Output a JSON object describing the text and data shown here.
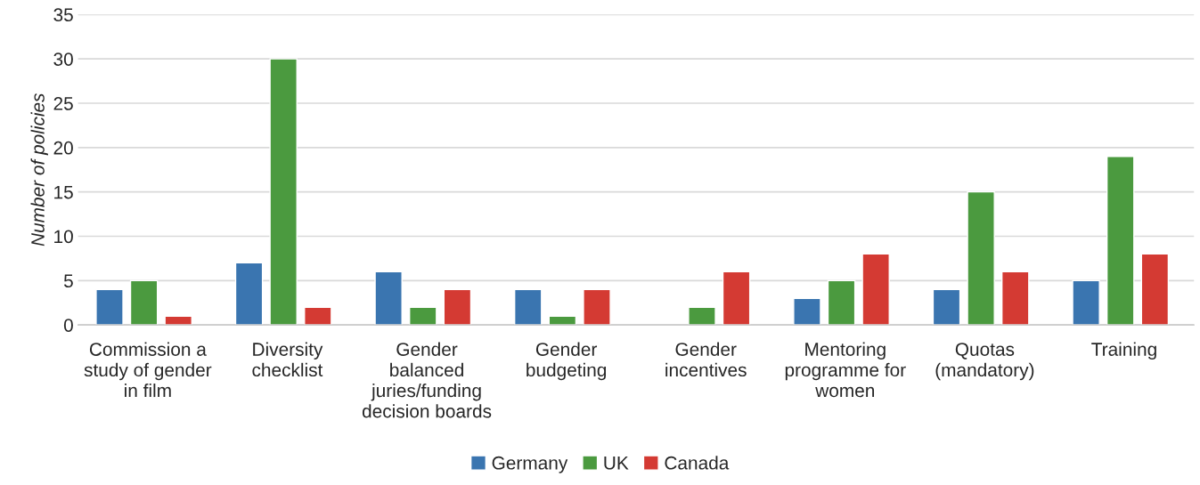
{
  "chart_data": {
    "type": "bar",
    "ylabel": "Number of policies",
    "categories": [
      "Commission a\nstudy of gender\nin film",
      "Diversity\nchecklist",
      "Gender\nbalanced\njuries/funding\ndecision boards",
      "Gender\nbudgeting",
      "Gender\nincentives",
      "Mentoring\nprogramme for\nwomen",
      "Quotas\n(mandatory)",
      "Training"
    ],
    "series": [
      {
        "name": "Germany",
        "color": "#3a75b0",
        "values": [
          4,
          7,
          6,
          4,
          null,
          3,
          4,
          5
        ]
      },
      {
        "name": "UK",
        "color": "#4b9a3f",
        "values": [
          5,
          30,
          2,
          1,
          2,
          5,
          15,
          19
        ]
      },
      {
        "name": "Canada",
        "color": "#d43a33",
        "values": [
          1,
          2,
          4,
          4,
          6,
          8,
          6,
          8
        ]
      }
    ],
    "ylim": [
      0,
      35
    ],
    "yticks": [
      0,
      5,
      10,
      15,
      20,
      25,
      30,
      35
    ],
    "grid": "y",
    "legend": "bottom"
  }
}
